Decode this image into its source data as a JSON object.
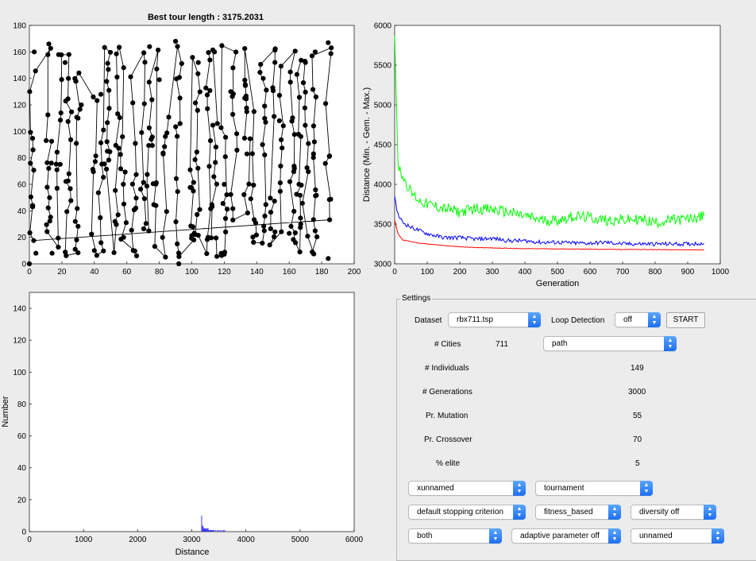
{
  "tour_plot": {
    "title": "Best tour length : 3175.2031",
    "x_ticks": [
      "0",
      "20",
      "40",
      "60",
      "80",
      "100",
      "120",
      "140",
      "160",
      "180",
      "200"
    ],
    "y_ticks": [
      "0",
      "20",
      "40",
      "60",
      "80",
      "100",
      "120",
      "140",
      "160",
      "180"
    ]
  },
  "convergence_plot": {
    "xlabel": "Generation",
    "ylabel": "Distance (Min. - Gem. - Max.)",
    "x_ticks": [
      "0",
      "100",
      "200",
      "300",
      "400",
      "500",
      "600",
      "700",
      "800",
      "900",
      "1000"
    ],
    "y_ticks": [
      "3000",
      "3500",
      "4000",
      "4500",
      "5000",
      "5500",
      "6000"
    ],
    "colors": {
      "min": "#ff0000",
      "mean": "#0000ff",
      "max": "#00ff00"
    }
  },
  "histogram_plot": {
    "xlabel": "Distance",
    "ylabel": "Number",
    "x_ticks": [
      "0",
      "1000",
      "2000",
      "3000",
      "4000",
      "5000",
      "6000"
    ],
    "y_ticks": [
      "0",
      "20",
      "40",
      "60",
      "80",
      "100",
      "120",
      "140"
    ],
    "bar_color": "#0000ff"
  },
  "chart_data": [
    {
      "type": "scatter",
      "title": "Best tour length : 3175.2031",
      "xlim": [
        0,
        200
      ],
      "ylim": [
        0,
        180
      ],
      "series": [
        {
          "values": [
            [
              0,
              0
            ],
            [
              2,
              43
            ],
            [
              3,
              160
            ],
            [
              4,
              8
            ],
            [
              12,
              166
            ],
            [
              14,
              8
            ],
            [
              18,
              158
            ],
            [
              22,
              152
            ],
            [
              24,
              140
            ],
            [
              30,
              110
            ],
            [
              32,
              120
            ],
            [
              40,
              10
            ],
            [
              44,
              128
            ],
            [
              48,
              85
            ],
            [
              54,
              141
            ],
            [
              58,
              20
            ],
            [
              66,
              6
            ],
            [
              74,
              164
            ],
            [
              80,
              139
            ],
            [
              90,
              168
            ],
            [
              92,
              0
            ],
            [
              104,
              152
            ],
            [
              110,
              20
            ],
            [
              114,
              160
            ],
            [
              120,
              60
            ],
            [
              124,
              130
            ],
            [
              134,
              83
            ],
            [
              144,
              140
            ],
            [
              154,
              108
            ],
            [
              160,
              23
            ],
            [
              170,
              152
            ],
            [
              176,
              160
            ],
            [
              184,
              167
            ],
            [
              184,
              4
            ]
          ]
        }
      ]
    },
    {
      "type": "line",
      "xlabel": "Generation",
      "ylabel": "Distance (Min. - Gem. - Max.)",
      "xlim": [
        0,
        1000
      ],
      "ylim": [
        3000,
        6000
      ],
      "x": [
        0,
        10,
        25,
        50,
        75,
        100,
        150,
        200,
        250,
        300,
        350,
        400,
        450,
        500,
        550,
        600,
        650,
        700,
        750,
        800,
        850,
        900,
        950
      ],
      "series": [
        {
          "values": [
            3550,
            3380,
            3300,
            3280,
            3260,
            3250,
            3230,
            3215,
            3205,
            3200,
            3195,
            3192,
            3190,
            3188,
            3186,
            3184,
            3182,
            3181,
            3180,
            3179,
            3178,
            3176,
            3175
          ]
        },
        {
          "values": [
            3850,
            3620,
            3520,
            3460,
            3420,
            3380,
            3330,
            3330,
            3310,
            3320,
            3290,
            3290,
            3270,
            3270,
            3260,
            3260,
            3270,
            3250,
            3250,
            3250,
            3250,
            3250,
            3260
          ]
        },
        {
          "values": [
            5870,
            4250,
            4100,
            3900,
            3800,
            3750,
            3700,
            3650,
            3700,
            3680,
            3650,
            3600,
            3550,
            3550,
            3600,
            3580,
            3550,
            3550,
            3560,
            3520,
            3550,
            3560,
            3600
          ]
        }
      ]
    },
    {
      "type": "bar",
      "xlabel": "Distance",
      "ylabel": "Number",
      "xlim": [
        0,
        6000
      ],
      "ylim": [
        0,
        150
      ],
      "x": [
        3175,
        3190,
        3205,
        3220,
        3235,
        3250,
        3265,
        3280,
        3295,
        3310,
        3325,
        3340,
        3355,
        3370,
        3385,
        3400,
        3430,
        3460,
        3490,
        3520,
        3550,
        3580,
        3600
      ],
      "values": [
        10,
        4,
        3,
        2,
        2,
        2,
        2,
        2,
        2,
        1,
        1,
        1,
        1,
        1,
        1,
        1,
        1,
        1,
        1,
        1,
        1,
        1,
        1
      ]
    }
  ],
  "settings": {
    "title": "Settings",
    "dataset_label": "Dataset",
    "dataset_value": "rbx711.tsp",
    "loop_detection_label": "Loop Detection",
    "loop_detection_value": "off",
    "start_button": "START",
    "cities_label": "# Cities",
    "cities_value": "711",
    "representation_value": "path",
    "individuals_label": "# Individuals",
    "individuals_value": "149",
    "generations_label": "# Generations",
    "generations_value": "3000",
    "mutation_label": "Pr. Mutation",
    "mutation_value": "55",
    "crossover_label": "Pr. Crossover",
    "crossover_value": "70",
    "elite_label": "% elite",
    "elite_value": "5",
    "mutation_op_value": "xunnamed",
    "selection_value": "tournament",
    "stopping_value": "default stopping criterion",
    "survivor_value": "fitness_based",
    "diversity_value": "diversity off",
    "both_value": "both",
    "adaptive_value": "adaptive parameter off",
    "unnamed_value": "unnamed"
  }
}
